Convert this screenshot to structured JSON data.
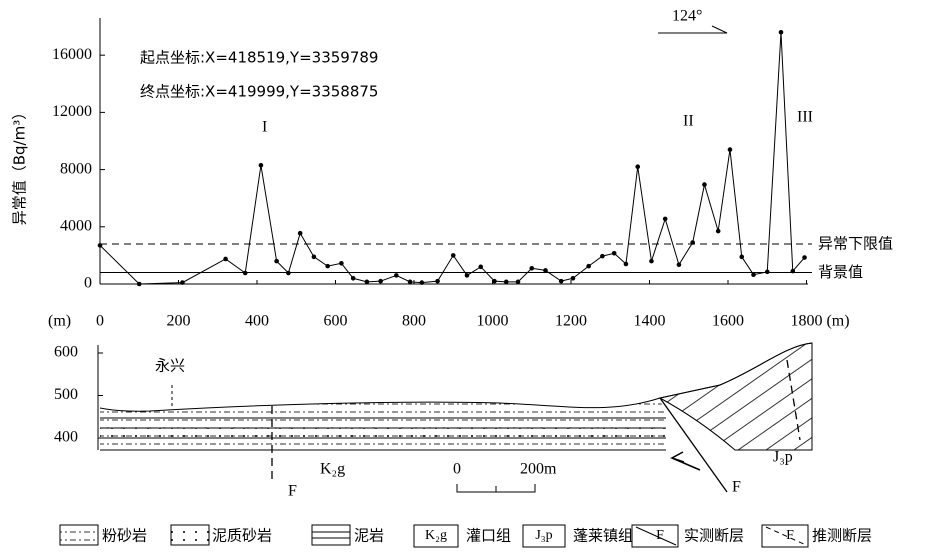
{
  "chart_data": {
    "type": "line",
    "y_label": "异常值（Bq/m³）",
    "x_label": "(m)",
    "x": [
      0,
      100,
      210,
      320,
      370,
      410,
      450,
      480,
      510,
      545,
      580,
      615,
      645,
      680,
      715,
      755,
      790,
      820,
      860,
      900,
      935,
      970,
      1005,
      1035,
      1065,
      1100,
      1135,
      1175,
      1205,
      1245,
      1280,
      1310,
      1340,
      1370,
      1405,
      1440,
      1475,
      1510,
      1540,
      1575,
      1605,
      1635,
      1665,
      1700,
      1735,
      1765,
      1795
    ],
    "series": [
      {
        "color": "#000000",
        "values": [
          2700,
          0,
          100,
          1750,
          770,
          8300,
          1600,
          770,
          3550,
          1900,
          1250,
          1450,
          400,
          150,
          200,
          600,
          150,
          100,
          200,
          2000,
          600,
          1200,
          200,
          150,
          150,
          1100,
          950,
          200,
          400,
          1250,
          1950,
          2150,
          1400,
          8200,
          1600,
          4550,
          1350,
          2900,
          6950,
          3700,
          9400,
          1900,
          650,
          850,
          17600,
          900,
          1850
        ]
      }
    ],
    "xlim": [
      0,
      1800
    ],
    "xticks": [
      0,
      200,
      400,
      600,
      800,
      1000,
      1200,
      1400,
      1600,
      1800
    ],
    "ylim": [
      0,
      18600
    ],
    "yticks": [
      0,
      4000,
      8000,
      12000,
      16000
    ],
    "reference_lines": [
      {
        "label": "异常下限值",
        "value": 2800,
        "style": "dashed"
      },
      {
        "label": "背景值",
        "value": 800,
        "style": "solid"
      }
    ],
    "annotations": [
      "起点坐标:X=418519,Y=3359789",
      "终点坐标:X=419999,Y=3358875",
      "I",
      "II",
      "III",
      "124°"
    ]
  },
  "section": {
    "y_unit": "(m)",
    "ylim": [
      400,
      600
    ],
    "yticks": [
      400,
      500,
      600
    ],
    "labels": [
      "永兴",
      "K₂g",
      "J₃p",
      "F",
      "F"
    ],
    "scale": [
      "0",
      "200m"
    ],
    "legend": [
      {
        "symbol": "",
        "label": "粉砂岩"
      },
      {
        "symbol": "",
        "label": "泥质砂岩"
      },
      {
        "symbol": "",
        "label": "泥岩"
      },
      {
        "symbol": "K₂g",
        "label": "灌口组"
      },
      {
        "symbol": "J₃p",
        "label": "蓬莱镇组"
      },
      {
        "symbol": "F",
        "label": "实测断层"
      },
      {
        "symbol": "F",
        "label": "推测断层"
      }
    ]
  }
}
